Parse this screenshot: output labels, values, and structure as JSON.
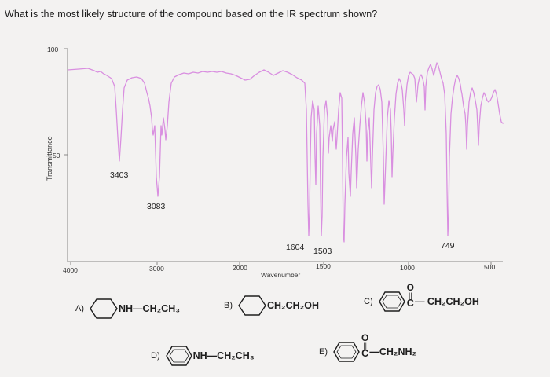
{
  "question": "What is the most likely structure of the compound based on the IR spectrum shown?",
  "spectrum": {
    "ylabel": "Transmittance",
    "xlabel": "Wavenumber",
    "y_ticks": [
      "100",
      "50"
    ],
    "x_ticks": [
      "4000",
      "3000",
      "2000",
      "1500",
      "1000",
      "500"
    ],
    "peak_labels": [
      "3403",
      "3083",
      "1604",
      "1503",
      "749"
    ],
    "line_color": "#d98fe0",
    "axis_color": "#888888"
  },
  "choices": [
    {
      "letter": "A)",
      "formula": "NH—CH₂CH₃"
    },
    {
      "letter": "B)",
      "formula": "CH₂CH₂OH"
    },
    {
      "letter": "C)",
      "carbonyl_o": "O",
      "carbonyl_bond": "||",
      "carbonyl_c": "C",
      "formula": "— CH₂CH₂OH"
    },
    {
      "letter": "D)",
      "formula": "NH—CH₂CH₃"
    },
    {
      "letter": "E)",
      "carbonyl_o": "O",
      "carbonyl_bond": "||",
      "carbonyl_c": "C",
      "formula": "—CH₂NH₂"
    }
  ]
}
